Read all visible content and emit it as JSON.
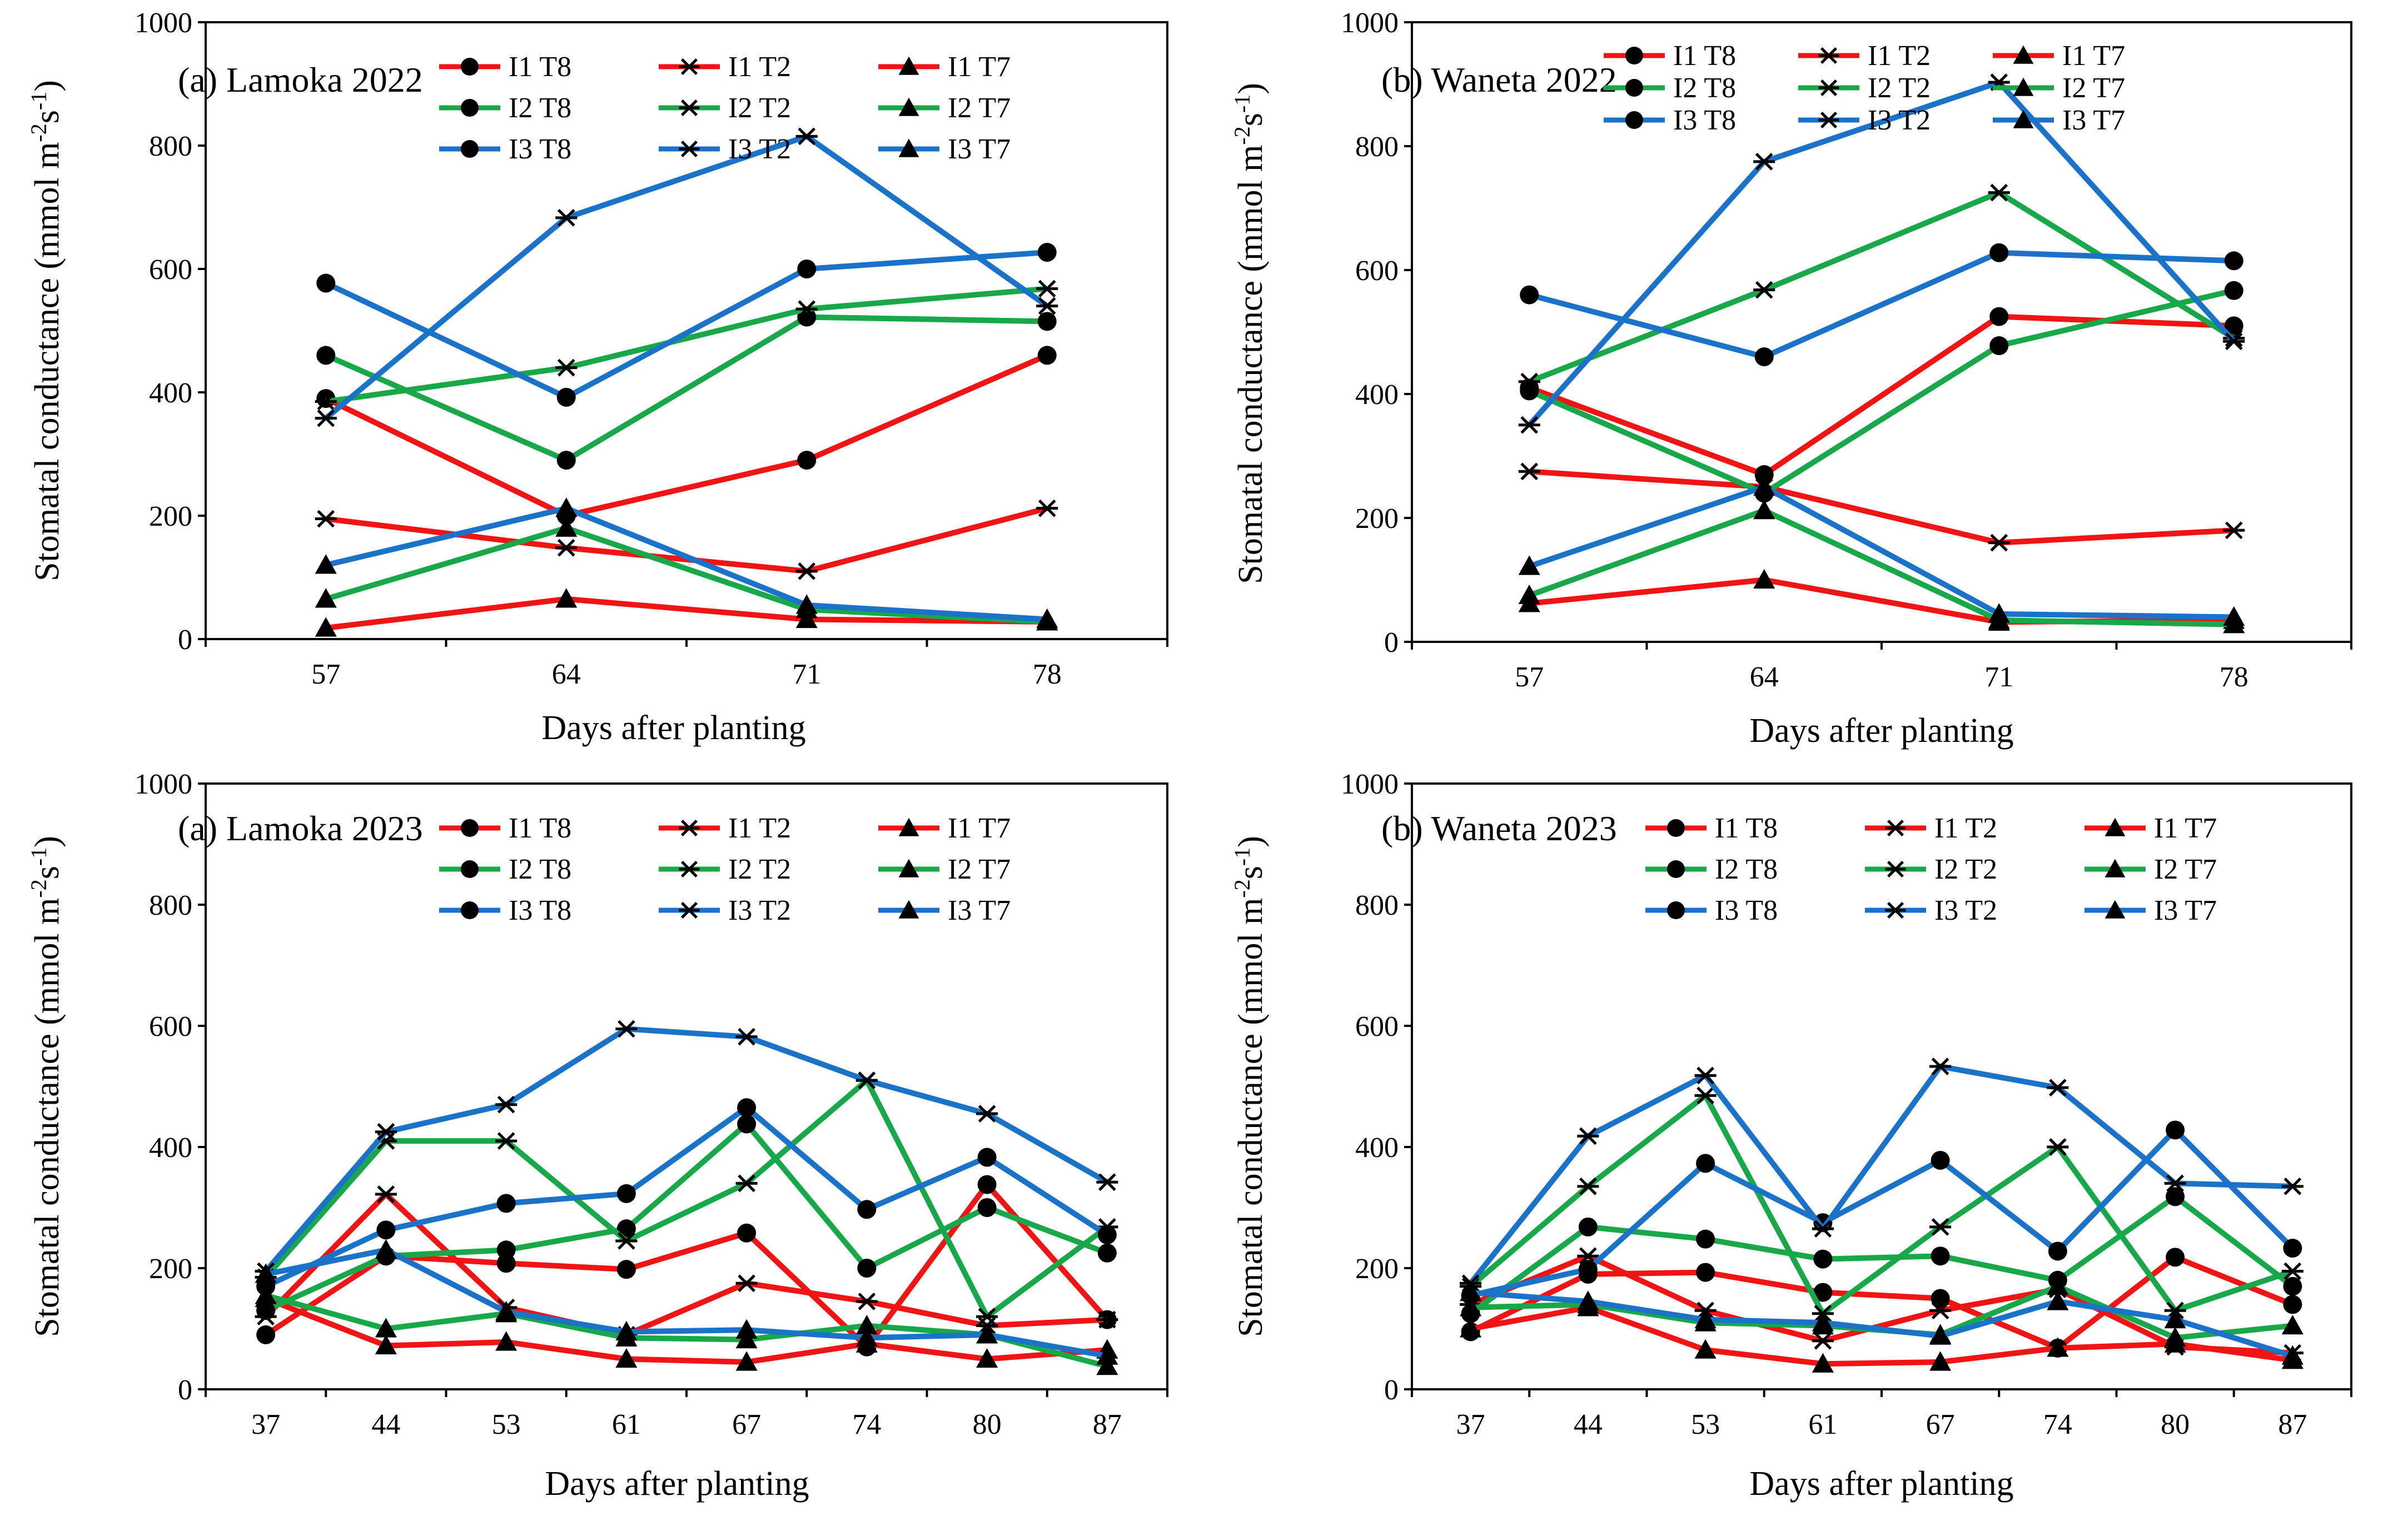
{
  "series_colors": {
    "I1": "#f01414",
    "I2": "#18a84a",
    "I3": "#1a73c8"
  },
  "legend_entries": [
    {
      "label": "I1  T8",
      "irr": "I1",
      "marker": "circle",
      "key": "I1T8"
    },
    {
      "label": "I1  T2",
      "irr": "I1",
      "marker": "star",
      "key": "I1T2"
    },
    {
      "label": "I1  T7",
      "irr": "I1",
      "marker": "triangle",
      "key": "I1T7"
    },
    {
      "label": "I2  T8",
      "irr": "I2",
      "marker": "circle",
      "key": "I2T8"
    },
    {
      "label": "I2  T2",
      "irr": "I2",
      "marker": "star",
      "key": "I2T2"
    },
    {
      "label": "I2  T7",
      "irr": "I2",
      "marker": "triangle",
      "key": "I2T7"
    },
    {
      "label": "I3  T8",
      "irr": "I3",
      "marker": "circle",
      "key": "I3T8"
    },
    {
      "label": "I3  T2",
      "irr": "I3",
      "marker": "star",
      "key": "I3T2"
    },
    {
      "label": "I3  T7",
      "irr": "I3",
      "marker": "triangle",
      "key": "I3T7"
    }
  ],
  "chart_data": [
    {
      "type": "line",
      "title": "(a) Lamoka 2022",
      "xlabel": "Days after planting",
      "ylabel": "Stomatal conductance (mmol m-2s-1)",
      "ylim": [
        0,
        1000
      ],
      "yticks": [
        0,
        200,
        400,
        600,
        800,
        1000
      ],
      "x": [
        57,
        64,
        71,
        78
      ],
      "series": [
        {
          "key": "I1T8",
          "values": [
            390,
            200,
            290,
            460
          ]
        },
        {
          "key": "I1T2",
          "values": [
            195,
            148,
            110,
            212
          ]
        },
        {
          "key": "I1T7",
          "values": [
            18,
            65,
            32,
            28
          ]
        },
        {
          "key": "I2T8",
          "values": [
            460,
            290,
            522,
            515
          ]
        },
        {
          "key": "I2T2",
          "values": [
            385,
            440,
            535,
            568
          ]
        },
        {
          "key": "I2T7",
          "values": [
            65,
            180,
            48,
            28
          ]
        },
        {
          "key": "I3T8",
          "values": [
            577,
            392,
            600,
            627
          ]
        },
        {
          "key": "I3T2",
          "values": [
            358,
            683,
            815,
            540
          ]
        },
        {
          "key": "I3T7",
          "values": [
            120,
            212,
            55,
            32
          ]
        }
      ]
    },
    {
      "type": "line",
      "title": "(b) Waneta 2022",
      "xlabel": "Days after planting",
      "ylabel": "Stomatal conductance (mmol m-2s-1)",
      "ylim": [
        0,
        1000
      ],
      "yticks": [
        0,
        200,
        400,
        600,
        800,
        1000
      ],
      "x": [
        57,
        64,
        71,
        78
      ],
      "series": [
        {
          "key": "I1T8",
          "values": [
            410,
            270,
            525,
            510
          ]
        },
        {
          "key": "I1T2",
          "values": [
            275,
            250,
            160,
            180
          ]
        },
        {
          "key": "I1T7",
          "values": [
            62,
            100,
            32,
            35
          ]
        },
        {
          "key": "I2T8",
          "values": [
            405,
            240,
            478,
            567
          ]
        },
        {
          "key": "I2T2",
          "values": [
            420,
            568,
            725,
            490
          ]
        },
        {
          "key": "I2T7",
          "values": [
            75,
            212,
            35,
            28
          ]
        },
        {
          "key": "I3T8",
          "values": [
            560,
            460,
            628,
            615
          ]
        },
        {
          "key": "I3T2",
          "values": [
            350,
            775,
            903,
            485
          ]
        },
        {
          "key": "I3T7",
          "values": [
            122,
            250,
            45,
            40
          ]
        }
      ]
    },
    {
      "type": "line",
      "title": "(a) Lamoka 2023",
      "xlabel": "Days after planting",
      "ylabel": "Stomatal conductance (mmol m-2s-1)",
      "ylim": [
        0,
        1000
      ],
      "yticks": [
        0,
        200,
        400,
        600,
        800,
        1000
      ],
      "x": [
        37,
        44,
        53,
        61,
        67,
        74,
        80,
        87
      ],
      "series": [
        {
          "key": "I1T8",
          "values": [
            90,
            220,
            208,
            198,
            258,
            70,
            338,
            115
          ]
        },
        {
          "key": "I1T2",
          "values": [
            120,
            322,
            135,
            90,
            175,
            145,
            105,
            115
          ]
        },
        {
          "key": "I1T7",
          "values": [
            150,
            72,
            78,
            50,
            45,
            75,
            50,
            65
          ]
        },
        {
          "key": "I2T8",
          "values": [
            130,
            220,
            230,
            265,
            438,
            200,
            300,
            225
          ]
        },
        {
          "key": "I2T2",
          "values": [
            185,
            410,
            410,
            245,
            340,
            510,
            120,
            268
          ]
        },
        {
          "key": "I2T7",
          "values": [
            155,
            100,
            125,
            85,
            82,
            105,
            90,
            38
          ]
        },
        {
          "key": "I3T8",
          "values": [
            170,
            263,
            307,
            323,
            465,
            297,
            383,
            255
          ]
        },
        {
          "key": "I3T2",
          "values": [
            195,
            425,
            470,
            595,
            582,
            510,
            455,
            342
          ]
        },
        {
          "key": "I3T7",
          "values": [
            190,
            230,
            128,
            95,
            98,
            85,
            90,
            55
          ]
        }
      ]
    },
    {
      "type": "line",
      "title": "(b) Waneta 2023",
      "xlabel": "Days after planting",
      "ylabel": "Stomatal conductance (mmol m-2s-1)",
      "ylim": [
        0,
        1000
      ],
      "yticks": [
        0,
        200,
        400,
        600,
        800,
        1000
      ],
      "x": [
        37,
        44,
        53,
        61,
        67,
        74,
        80,
        87
      ],
      "series": [
        {
          "key": "I1T8",
          "values": [
            95,
            190,
            193,
            160,
            150,
            68,
            218,
            140
          ]
        },
        {
          "key": "I1T2",
          "values": [
            140,
            220,
            130,
            80,
            130,
            165,
            70,
            60
          ]
        },
        {
          "key": "I1T7",
          "values": [
            100,
            135,
            65,
            42,
            45,
            68,
            75,
            48
          ]
        },
        {
          "key": "I2T8",
          "values": [
            125,
            268,
            248,
            215,
            220,
            180,
            318,
            170
          ]
        },
        {
          "key": "I2T2",
          "values": [
            170,
            335,
            485,
            125,
            268,
            400,
            130,
            195
          ]
        },
        {
          "key": "I2T7",
          "values": [
            135,
            140,
            110,
            105,
            90,
            170,
            85,
            105
          ]
        },
        {
          "key": "I3T8",
          "values": [
            155,
            198,
            373,
            275,
            378,
            228,
            428,
            233
          ]
        },
        {
          "key": "I3T2",
          "values": [
            175,
            418,
            518,
            265,
            533,
            498,
            340,
            335
          ]
        },
        {
          "key": "I3T7",
          "values": [
            160,
            145,
            115,
            110,
            88,
            145,
            115,
            55
          ]
        }
      ]
    }
  ]
}
